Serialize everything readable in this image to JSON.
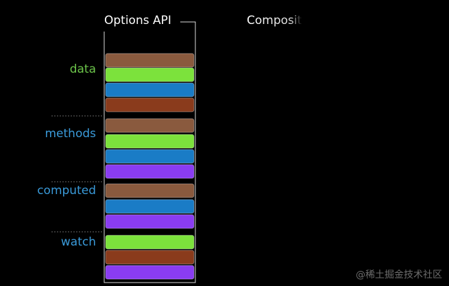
{
  "header": {
    "left_title": "Options API",
    "right_title": "Composit"
  },
  "groups": [
    {
      "label": "data",
      "label_color": "#6cc44a",
      "blocks": [
        "#8a5a3e",
        "#7ce23c",
        "#1a7cc6",
        "#8a3b1c"
      ]
    },
    {
      "label": "methods",
      "label_color": "#3a9ad9",
      "blocks": [
        "#8a5a3e",
        "#7ce23c",
        "#1a7cc6",
        "#8a3cf2"
      ]
    },
    {
      "label": "computed",
      "label_color": "#3a9ad9",
      "blocks": [
        "#8a5a3e",
        "#1a7cc6",
        "#8a3cf2"
      ]
    },
    {
      "label": "watch",
      "label_color": "#3a9ad9",
      "blocks": [
        "#7ce23c",
        "#8a3b1c",
        "#8a3cf2"
      ]
    }
  ],
  "watermark": "@稀土掘金技术社区"
}
